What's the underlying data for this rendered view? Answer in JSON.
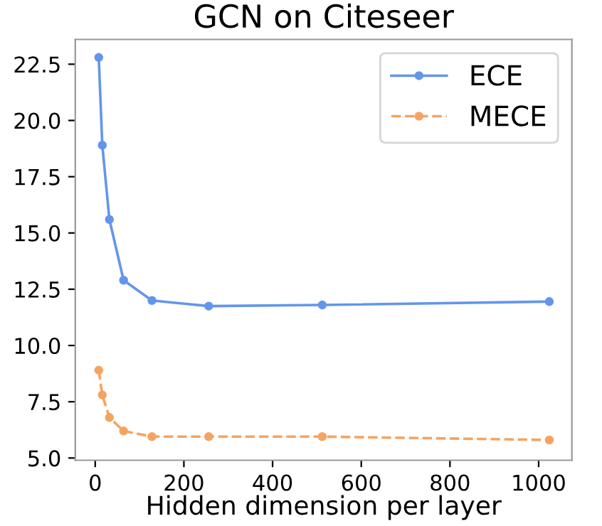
{
  "chart_data": {
    "type": "line",
    "title": "GCN on Citeseer",
    "xlabel": "Hidden dimension per layer",
    "x": [
      8,
      16,
      32,
      64,
      128,
      256,
      512,
      1024
    ],
    "series": [
      {
        "name": "ECE",
        "color": "#6495ed",
        "values": [
          22.8,
          18.9,
          15.6,
          12.9,
          12.0,
          11.75,
          11.8,
          11.95
        ],
        "line_style": "solid"
      },
      {
        "name": "MECE",
        "color": "#f4a460",
        "values": [
          8.9,
          7.8,
          6.8,
          6.2,
          5.95,
          5.95,
          5.95,
          5.8
        ],
        "line_style": "dashed"
      }
    ],
    "xlim": [
      -45,
      1075
    ],
    "ylim": [
      4.9,
      23.6
    ],
    "xticks": [
      0,
      200,
      400,
      600,
      800,
      1000
    ],
    "yticks": [
      {
        "value": 5,
        "label": "5.0"
      },
      7.5,
      {
        "value": 10,
        "label": "10.0"
      },
      12.5,
      {
        "value": 15,
        "label": "15.0"
      },
      17.5,
      {
        "value": 20,
        "label": "20.0"
      },
      22.5
    ],
    "marker": "circle",
    "legend": "top right",
    "grid": false
  }
}
